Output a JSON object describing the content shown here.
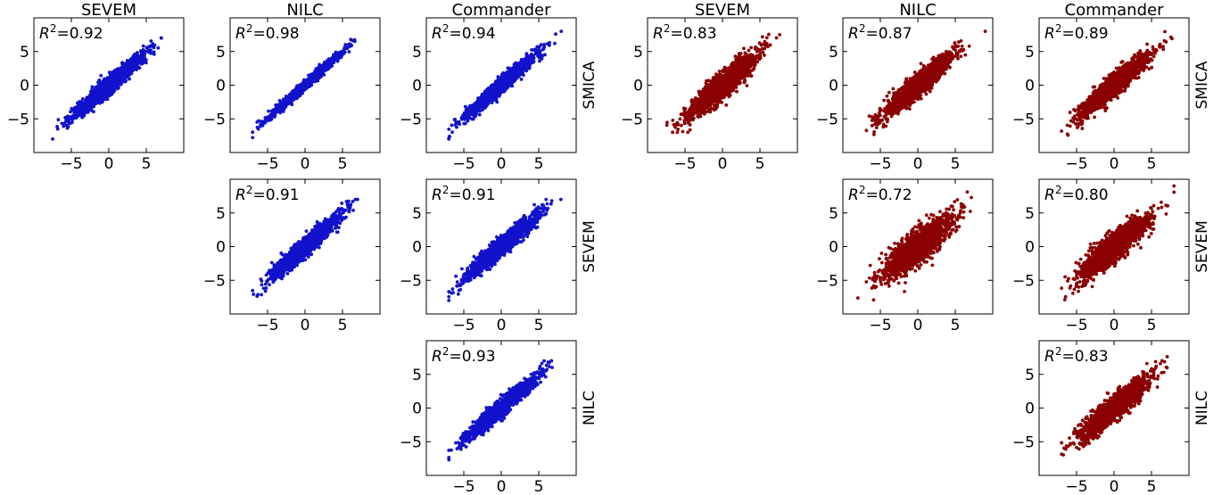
{
  "figure": {
    "column_titles": [
      "SEVEM",
      "NILC",
      "Commander",
      "SEVEM",
      "NILC",
      "Commander"
    ],
    "row_labels": [
      "SMICA",
      "SEVEM",
      "NILC"
    ],
    "r2_prefix": "R",
    "r2_exponent": "2"
  },
  "colors": {
    "left_series": "#1212cc",
    "right_series": "#8b0000"
  },
  "chart_data": [
    {
      "type": "scatter",
      "column": "SEVEM",
      "row": "SMICA",
      "r2_text": "=0.92",
      "r2": 0.92,
      "points": 1500,
      "x_range": [
        -8,
        7
      ],
      "y_range": [
        -8,
        7
      ],
      "xlim": [
        -10,
        10
      ],
      "ylim": [
        -10,
        10
      ],
      "xticks": [
        -5,
        0,
        5
      ],
      "yticks": [
        -5,
        0,
        5
      ],
      "grid": false
    },
    {
      "type": "scatter",
      "column": "NILC",
      "row": "SMICA",
      "r2_text": "=0.98",
      "r2": 0.98,
      "points": 1500,
      "x_range": [
        -7,
        7
      ],
      "y_range": [
        -8,
        8
      ],
      "xlim": [
        -10,
        10
      ],
      "ylim": [
        -10,
        10
      ],
      "xticks": [
        -5,
        0,
        5
      ],
      "yticks": [
        -5,
        0,
        5
      ],
      "grid": false
    },
    {
      "type": "scatter",
      "column": "Commander",
      "row": "SMICA",
      "r2_text": "=0.94",
      "r2": 0.94,
      "points": 1500,
      "x_range": [
        -7,
        8
      ],
      "y_range": [
        -8,
        8
      ],
      "xlim": [
        -10,
        10
      ],
      "ylim": [
        -10,
        10
      ],
      "xticks": [
        -5,
        0,
        5
      ],
      "yticks": [
        -5,
        0,
        5
      ],
      "grid": false
    },
    {
      "type": "scatter",
      "column": "SEVEM",
      "row": "SMICA",
      "r2_text": "=0.83",
      "r2": 0.83,
      "points": 1500,
      "x_range": [
        -9,
        9
      ],
      "y_range": [
        -7,
        9
      ],
      "xlim": [
        -10,
        10
      ],
      "ylim": [
        -10,
        10
      ],
      "xticks": [
        -5,
        0,
        5
      ],
      "yticks": [
        -5,
        0,
        5
      ],
      "grid": false
    },
    {
      "type": "scatter",
      "column": "NILC",
      "row": "SMICA",
      "r2_text": "=0.87",
      "r2": 0.87,
      "points": 1500,
      "x_range": [
        -8,
        9
      ],
      "y_range": [
        -8,
        8
      ],
      "xlim": [
        -10,
        10
      ],
      "ylim": [
        -10,
        10
      ],
      "xticks": [
        -5,
        0,
        5
      ],
      "yticks": [
        -5,
        0,
        5
      ],
      "grid": false
    },
    {
      "type": "scatter",
      "column": "Commander",
      "row": "SMICA",
      "r2_text": "=0.89",
      "r2": 0.89,
      "points": 1500,
      "x_range": [
        -7,
        8
      ],
      "y_range": [
        -8,
        8
      ],
      "xlim": [
        -10,
        10
      ],
      "ylim": [
        -10,
        10
      ],
      "xticks": [
        -5,
        0,
        5
      ],
      "yticks": [
        -5,
        0,
        5
      ],
      "grid": false
    },
    {
      "type": "scatter",
      "column": "NILC",
      "row": "SEVEM",
      "r2_text": "=0.91",
      "r2": 0.91,
      "points": 1500,
      "x_range": [
        -7,
        7
      ],
      "y_range": [
        -8,
        7
      ],
      "xlim": [
        -10,
        10
      ],
      "ylim": [
        -10,
        10
      ],
      "xticks": [
        -5,
        0,
        5
      ],
      "yticks": [
        -5,
        0,
        5
      ],
      "grid": false
    },
    {
      "type": "scatter",
      "column": "Commander",
      "row": "SEVEM",
      "r2_text": "=0.91",
      "r2": 0.91,
      "points": 1500,
      "x_range": [
        -7,
        8
      ],
      "y_range": [
        -8,
        7
      ],
      "xlim": [
        -10,
        10
      ],
      "ylim": [
        -10,
        10
      ],
      "xticks": [
        -5,
        0,
        5
      ],
      "yticks": [
        -5,
        0,
        5
      ],
      "grid": false
    },
    {
      "type": "scatter",
      "column": "NILC",
      "row": "SEVEM",
      "r2_text": "=0.72",
      "r2": 0.72,
      "points": 1500,
      "x_range": [
        -8,
        9
      ],
      "y_range": [
        -9,
        9
      ],
      "xlim": [
        -10,
        10
      ],
      "ylim": [
        -10,
        10
      ],
      "xticks": [
        -5,
        0,
        5
      ],
      "yticks": [
        -5,
        0,
        5
      ],
      "grid": false
    },
    {
      "type": "scatter",
      "column": "Commander",
      "row": "SEVEM",
      "r2_text": "=0.80",
      "r2": 0.8,
      "points": 1500,
      "x_range": [
        -7,
        8
      ],
      "y_range": [
        -8,
        9
      ],
      "xlim": [
        -10,
        10
      ],
      "ylim": [
        -10,
        10
      ],
      "xticks": [
        -5,
        0,
        5
      ],
      "yticks": [
        -5,
        0,
        5
      ],
      "grid": false
    },
    {
      "type": "scatter",
      "column": "Commander",
      "row": "NILC",
      "r2_text": "=0.93",
      "r2": 0.93,
      "points": 1500,
      "x_range": [
        -7,
        8
      ],
      "y_range": [
        -8,
        7
      ],
      "xlim": [
        -10,
        10
      ],
      "ylim": [
        -10,
        10
      ],
      "xticks": [
        -5,
        0,
        5
      ],
      "yticks": [
        -5,
        0,
        5
      ],
      "grid": false
    },
    {
      "type": "scatter",
      "column": "Commander",
      "row": "NILC",
      "r2_text": "=0.83",
      "r2": 0.83,
      "points": 1500,
      "x_range": [
        -7,
        8
      ],
      "y_range": [
        -9,
        8
      ],
      "xlim": [
        -10,
        10
      ],
      "ylim": [
        -10,
        10
      ],
      "xticks": [
        -5,
        0,
        5
      ],
      "yticks": [
        -5,
        0,
        5
      ],
      "grid": false
    }
  ]
}
